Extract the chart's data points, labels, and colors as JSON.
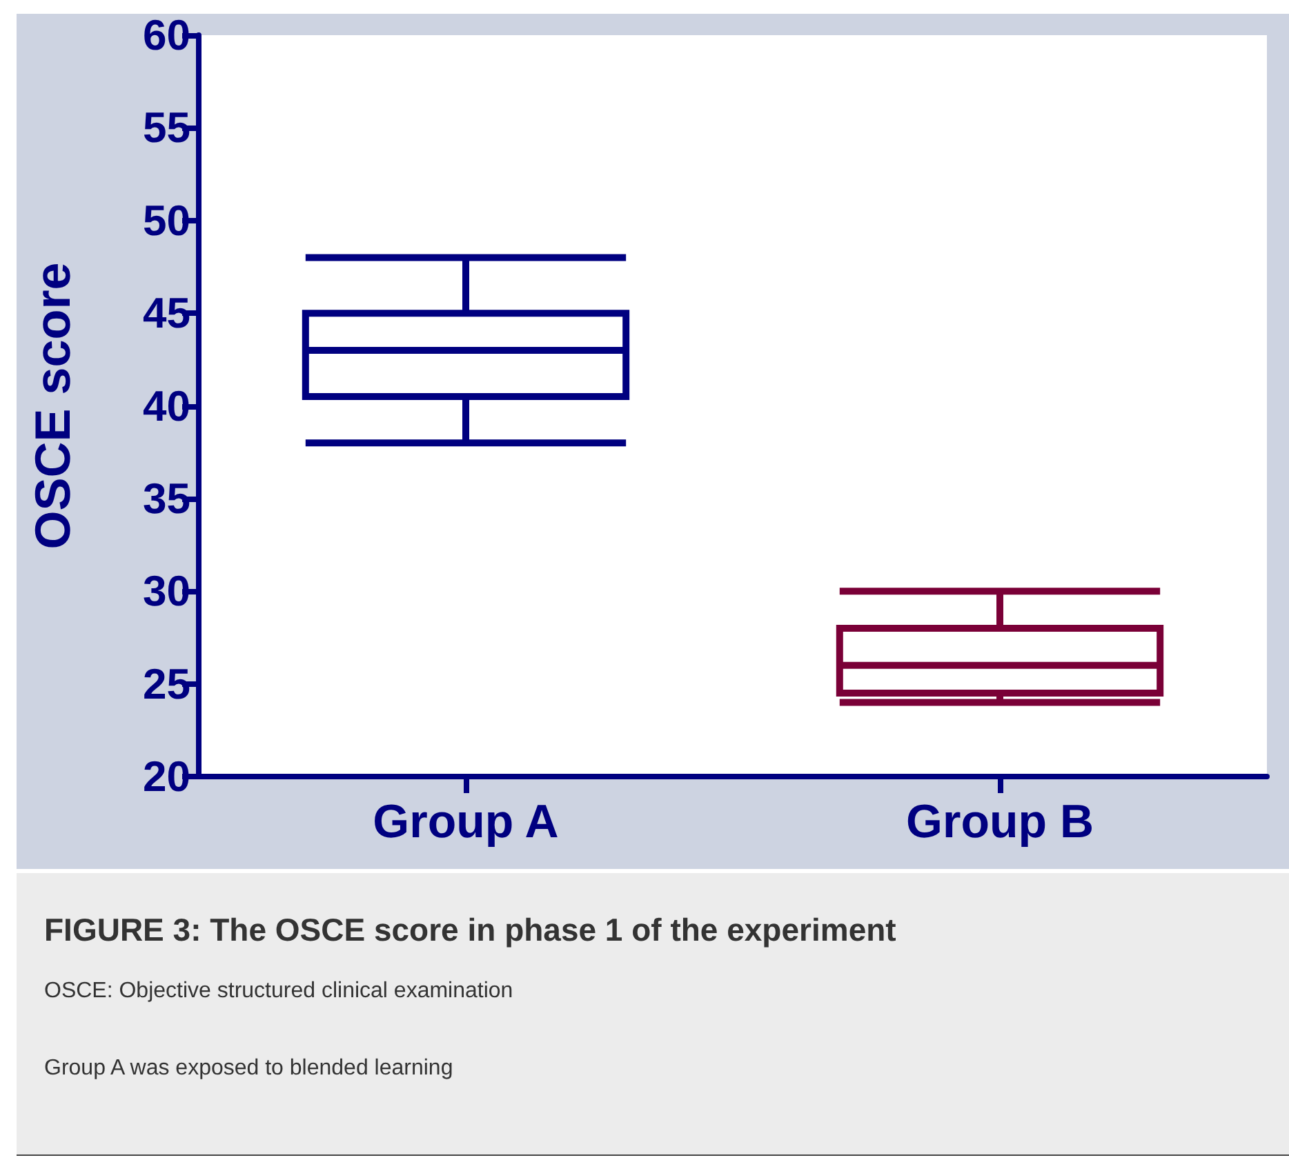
{
  "chart_data": {
    "type": "box",
    "title": "FIGURE 3: The OSCE score in phase 1 of the experiment",
    "annotations": [
      "OSCE: Objective structured clinical examination",
      "Group A was exposed to blended learning"
    ],
    "ylabel": "OSCE score",
    "categories": [
      "Group A",
      "Group B"
    ],
    "boxes": [
      {
        "low": 38,
        "q1": 40.5,
        "median": 43,
        "q3": 45,
        "high": 48
      },
      {
        "low": 24,
        "q1": 24.5,
        "median": 26,
        "q3": 28,
        "high": 30
      }
    ],
    "colors": [
      "#000080",
      "#7a0037"
    ],
    "ylim": [
      20,
      60
    ],
    "yticks": [
      20,
      25,
      30,
      35,
      40,
      45,
      50,
      55,
      60
    ]
  }
}
